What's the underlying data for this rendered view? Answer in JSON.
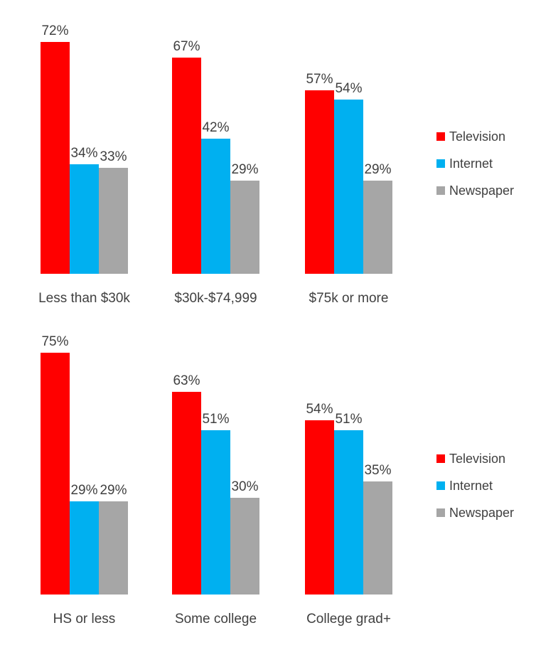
{
  "page": {
    "background": "#ffffff",
    "text_color": "#404040"
  },
  "chart_data": [
    {
      "type": "bar",
      "title": "",
      "xlabel": "",
      "ylabel": "",
      "ylim": [
        0,
        100
      ],
      "grid": false,
      "value_suffix": "%",
      "categories": [
        "Less than $30k",
        "$30k-$74,999",
        "$75k or more"
      ],
      "series": [
        {
          "name": "Television",
          "color": "#ff0000",
          "values": [
            72,
            67,
            57
          ],
          "labels": [
            "72%",
            "67%",
            "57%"
          ]
        },
        {
          "name": "Internet",
          "color": "#00b0f0",
          "values": [
            34,
            42,
            54
          ],
          "labels": [
            "34%",
            "42%",
            "54%"
          ]
        },
        {
          "name": "Newspaper",
          "color": "#a6a6a6",
          "values": [
            33,
            29,
            29
          ],
          "labels": [
            "33%",
            "29%",
            "29%"
          ]
        }
      ],
      "legend_position": "right",
      "legend_items": [
        {
          "label": "Television",
          "color": "#ff0000"
        },
        {
          "label": "Internet",
          "color": "#00b0f0"
        },
        {
          "label": "Newspaper",
          "color": "#a6a6a6"
        }
      ]
    },
    {
      "type": "bar",
      "title": "",
      "xlabel": "",
      "ylabel": "",
      "ylim": [
        0,
        100
      ],
      "grid": false,
      "value_suffix": "%",
      "categories": [
        "HS or less",
        "Some college",
        "College grad+"
      ],
      "series": [
        {
          "name": "Television",
          "color": "#ff0000",
          "values": [
            75,
            63,
            54
          ],
          "labels": [
            "75%",
            "63%",
            "54%"
          ]
        },
        {
          "name": "Internet",
          "color": "#00b0f0",
          "values": [
            29,
            51,
            51
          ],
          "labels": [
            "29%",
            "51%",
            "51%"
          ]
        },
        {
          "name": "Newspaper",
          "color": "#a6a6a6",
          "values": [
            29,
            30,
            35
          ],
          "labels": [
            "29%",
            "30%",
            "35%"
          ]
        }
      ],
      "legend_position": "right",
      "legend_items": [
        {
          "label": "Television",
          "color": "#ff0000"
        },
        {
          "label": "Internet",
          "color": "#00b0f0"
        },
        {
          "label": "Newspaper",
          "color": "#a6a6a6"
        }
      ]
    }
  ]
}
